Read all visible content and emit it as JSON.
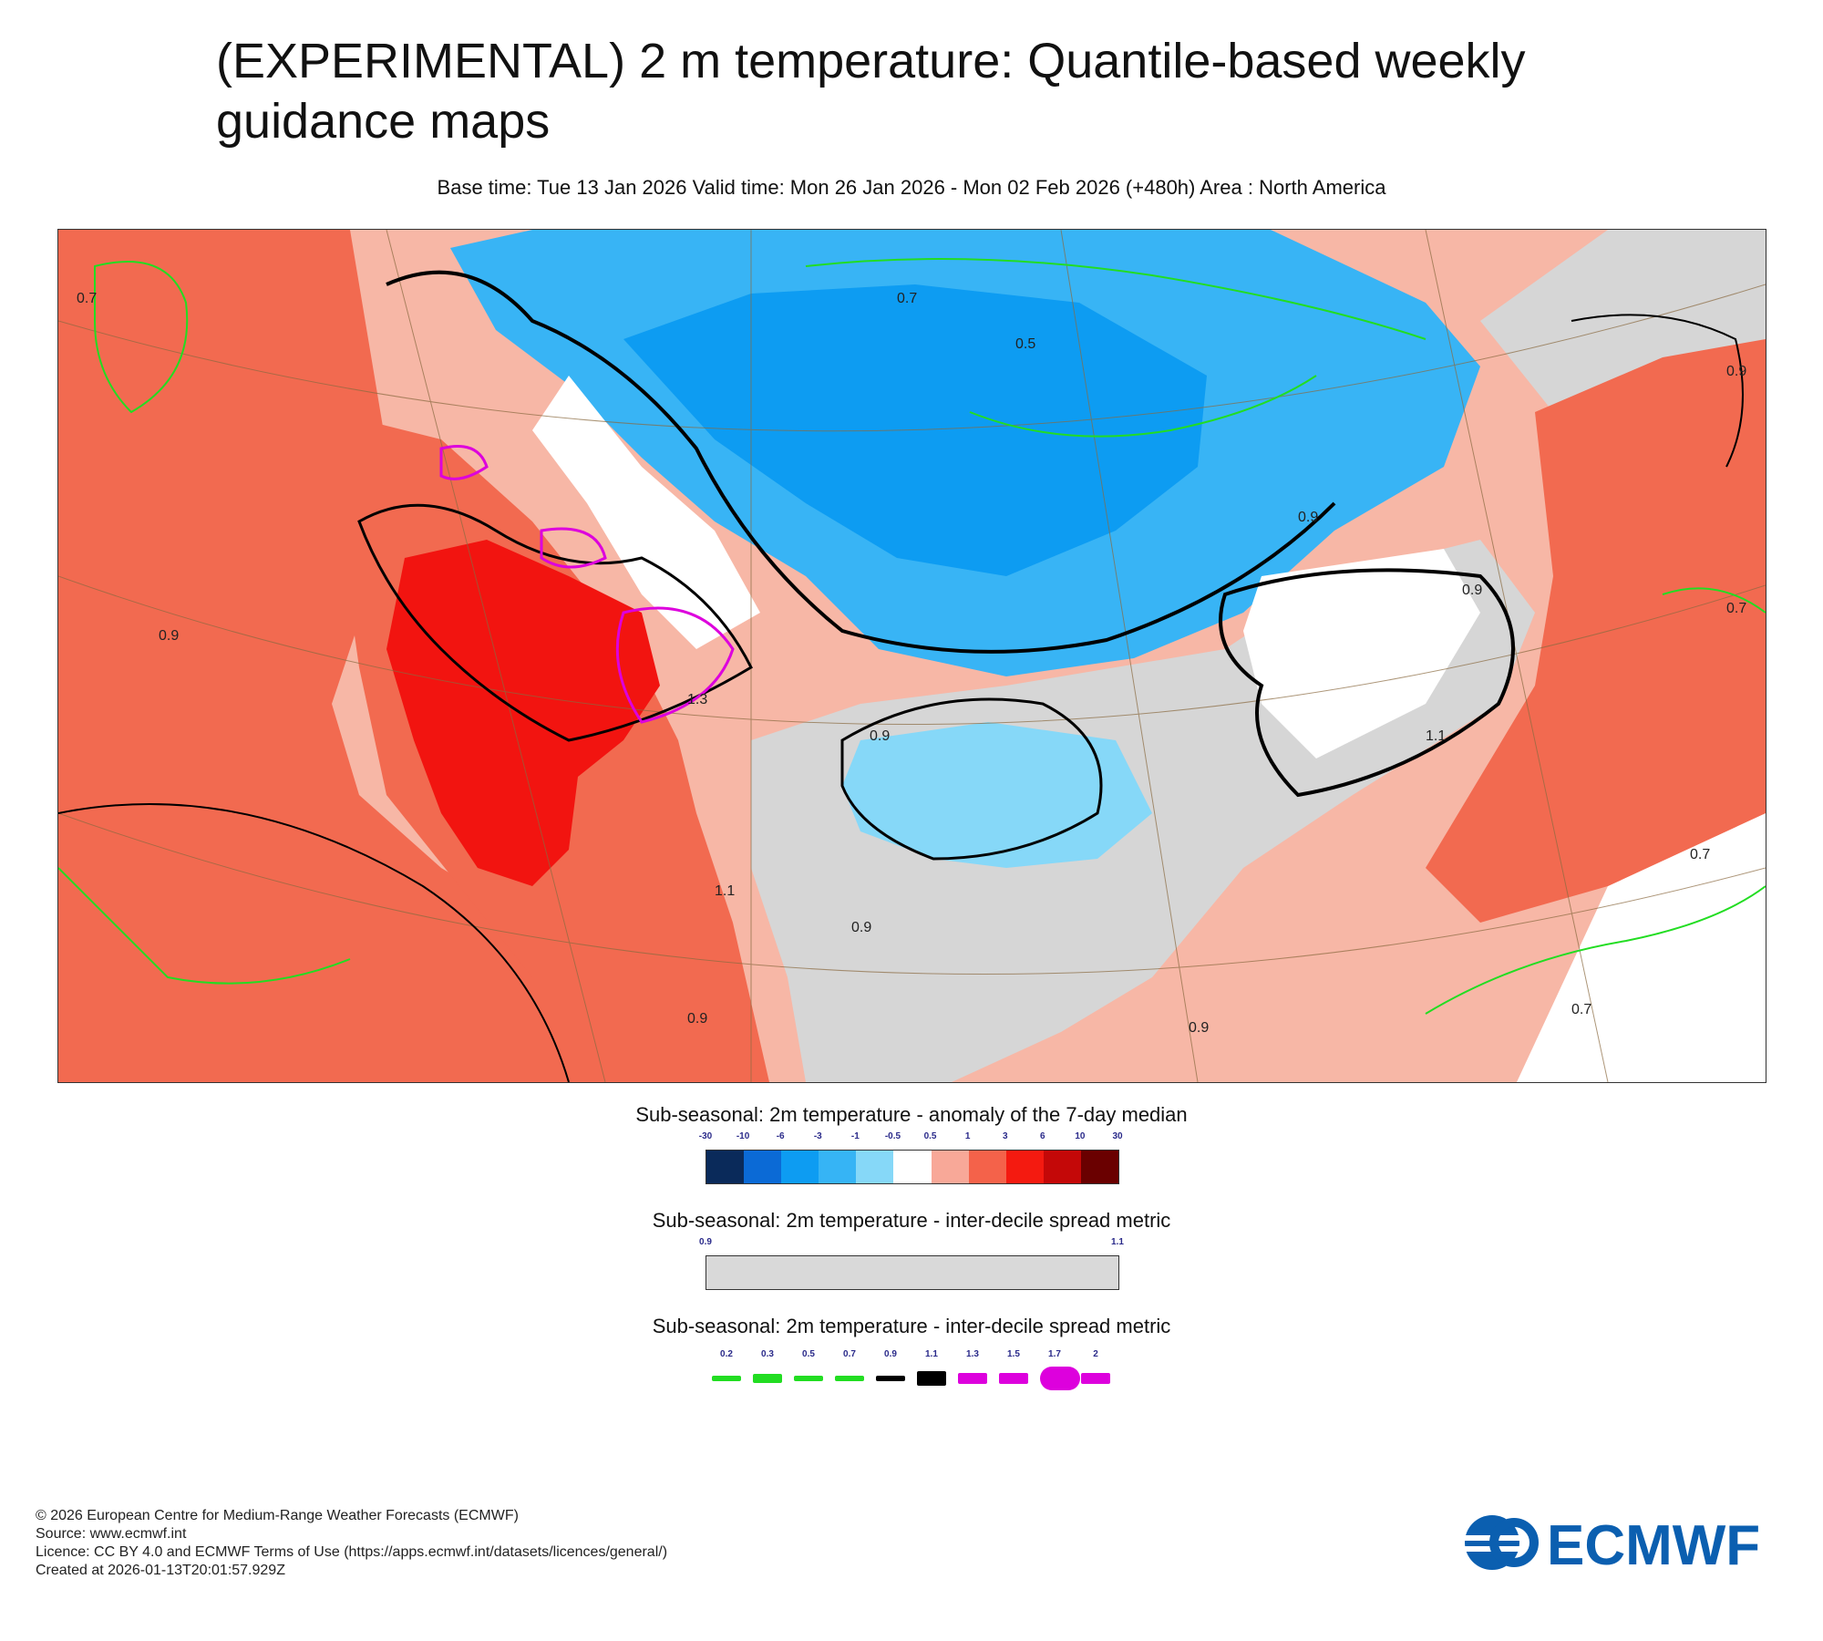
{
  "title": "(EXPERIMENTAL) 2 m temperature: Quantile-based weekly guidance maps",
  "subtitle": "Base time: Tue 13 Jan 2026 Valid time: Mon 26 Jan 2026 - Mon 02 Feb 2026 (+480h) Area : North America",
  "map": {
    "contour_labels": [
      "0.7",
      "0.7",
      "0.5",
      "0.9",
      "0.9",
      "0.9",
      "0.9",
      "1.3",
      "0.9",
      "1.1",
      "0.9",
      "0.9",
      "0.7",
      "0.7",
      "0.7",
      "0.9",
      "1.1"
    ]
  },
  "legend_anomaly": {
    "title": "Sub-seasonal: 2m temperature - anomaly of the 7-day median",
    "ticks": [
      "-30",
      "-10",
      "-6",
      "-3",
      "-1",
      "-0.5",
      "0.5",
      "1",
      "3",
      "6",
      "10",
      "30"
    ],
    "colors": [
      "#0a2a5a",
      "#0b6ad6",
      "#0d9cf2",
      "#36b4f5",
      "#86d8f8",
      "#ffffff",
      "#f8a898",
      "#f4624a",
      "#f41a10",
      "#c40808",
      "#6a0000"
    ]
  },
  "legend_spread": {
    "title": "Sub-seasonal: 2m temperature - inter-decile spread metric",
    "ticks": [
      "0.9",
      "1.1"
    ],
    "color": "#d9d9d9"
  },
  "legend_lines": {
    "title": "Sub-seasonal: 2m temperature - inter-decile spread metric",
    "ticks": [
      "0.2",
      "0.3",
      "0.5",
      "0.7",
      "0.9",
      "1.1",
      "1.3",
      "1.5",
      "1.7",
      "2"
    ],
    "colors": [
      "#22dd22",
      "#22dd22",
      "#22dd22",
      "#22dd22",
      "#000000",
      "#000000",
      "#dd00dd",
      "#dd00dd",
      "#dd00dd",
      "#dd00dd"
    ]
  },
  "footer": {
    "copyright": "© 2026 European Centre for Medium-Range Weather Forecasts (ECMWF)",
    "source": "Source: www.ecmwf.int",
    "licence": "Licence: CC BY 4.0 and ECMWF Terms of Use (https://apps.ecmwf.int/datasets/licences/general/)",
    "created": "Created at 2026-01-13T20:01:57.929Z"
  },
  "logo": {
    "text": "ECMWF",
    "color": "#0b5fb0"
  }
}
